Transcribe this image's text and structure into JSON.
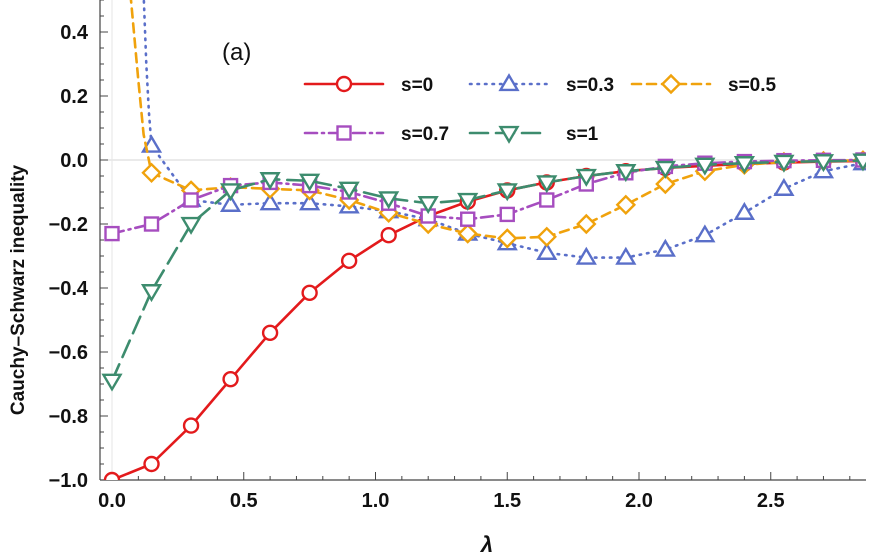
{
  "chart_data": {
    "type": "line",
    "panel_label": "(a)",
    "xlabel": "λ",
    "ylabel": "Cauchy–Schwarz inequality",
    "xlim": [
      -0.04,
      2.9
    ],
    "ylim": [
      -1.0,
      0.5
    ],
    "xticks": [
      0.0,
      0.5,
      1.0,
      1.5,
      2.0,
      2.5
    ],
    "xtick_labels": [
      "0.0",
      "0.5",
      "1.0",
      "1.5",
      "2.0",
      "2.5"
    ],
    "yticks": [
      -1.0,
      -0.8,
      -0.6,
      -0.4,
      -0.2,
      0.0,
      0.2,
      0.4
    ],
    "ytick_labels": [
      "−1.0",
      "−0.8",
      "−0.6",
      "−0.4",
      "−0.2",
      "0.0",
      "0.2",
      "0.4"
    ],
    "grid": "horizontal line at y=0",
    "legend_position": "top-right",
    "series": [
      {
        "name": "s=0",
        "color": "#e31a1c",
        "dash": "solid",
        "marker": "circle",
        "x": [
          0.0,
          0.15,
          0.3,
          0.45,
          0.6,
          0.75,
          0.9,
          1.05,
          1.2,
          1.35,
          1.5,
          1.65,
          1.8,
          1.95,
          2.1,
          2.25,
          2.4,
          2.55,
          2.7,
          2.85
        ],
        "y": [
          -1.0,
          -0.95,
          -0.83,
          -0.685,
          -0.54,
          -0.415,
          -0.315,
          -0.235,
          -0.175,
          -0.13,
          -0.095,
          -0.07,
          -0.05,
          -0.035,
          -0.025,
          -0.018,
          -0.012,
          -0.008,
          -0.005,
          -0.003
        ]
      },
      {
        "name": "s=0.3",
        "color": "#5a6fc9",
        "dash": "dotted",
        "marker": "triangle-up",
        "x": [
          0.15,
          0.3,
          0.45,
          0.6,
          0.75,
          0.9,
          1.05,
          1.2,
          1.35,
          1.5,
          1.65,
          1.8,
          1.95,
          2.1,
          2.25,
          2.4,
          2.55,
          2.7,
          2.85
        ],
        "y": [
          0.045,
          -0.125,
          -0.14,
          -0.135,
          -0.135,
          -0.145,
          -0.16,
          -0.185,
          -0.23,
          -0.26,
          -0.29,
          -0.305,
          -0.305,
          -0.28,
          -0.235,
          -0.165,
          -0.09,
          -0.035,
          -0.01
        ],
        "lead_in": [
          [
            0.12,
            0.52
          ],
          [
            0.13,
            0.3
          ],
          [
            0.14,
            0.15
          ]
        ]
      },
      {
        "name": "s=0.5",
        "color": "#f0a20c",
        "dash": "dashed",
        "marker": "diamond",
        "x": [
          0.15,
          0.3,
          0.45,
          0.6,
          0.75,
          0.9,
          1.05,
          1.2,
          1.35,
          1.5,
          1.65,
          1.8,
          1.95,
          2.1,
          2.25,
          2.4,
          2.55,
          2.7,
          2.85
        ],
        "y": [
          -0.04,
          -0.095,
          -0.085,
          -0.09,
          -0.095,
          -0.125,
          -0.165,
          -0.2,
          -0.23,
          -0.245,
          -0.24,
          -0.2,
          -0.14,
          -0.075,
          -0.035,
          -0.015,
          -0.006,
          -0.003,
          -0.001
        ],
        "lead_in": [
          [
            0.07,
            0.52
          ],
          [
            0.1,
            0.25
          ],
          [
            0.12,
            0.08
          ]
        ]
      },
      {
        "name": "s=0.7",
        "color": "#a64dbf",
        "dash": "dash-dot",
        "marker": "square",
        "x": [
          0.0,
          0.15,
          0.3,
          0.45,
          0.6,
          0.75,
          0.9,
          1.05,
          1.2,
          1.35,
          1.5,
          1.65,
          1.8,
          1.95,
          2.1,
          2.25,
          2.4,
          2.55,
          2.7,
          2.85
        ],
        "y": [
          -0.23,
          -0.2,
          -0.125,
          -0.08,
          -0.07,
          -0.08,
          -0.1,
          -0.135,
          -0.175,
          -0.185,
          -0.17,
          -0.125,
          -0.075,
          -0.04,
          -0.02,
          -0.01,
          -0.005,
          -0.002,
          -0.001,
          0.0
        ]
      },
      {
        "name": "s=1",
        "color": "#3d8c6e",
        "dash": "long-dash",
        "marker": "triangle-down",
        "x": [
          0.0,
          0.15,
          0.3,
          0.45,
          0.6,
          0.75,
          0.9,
          1.05,
          1.2,
          1.35,
          1.5,
          1.65,
          1.8,
          1.95,
          2.1,
          2.25,
          2.4,
          2.55,
          2.7,
          2.85
        ],
        "y": [
          -0.69,
          -0.41,
          -0.2,
          -0.095,
          -0.06,
          -0.065,
          -0.09,
          -0.12,
          -0.135,
          -0.125,
          -0.095,
          -0.07,
          -0.05,
          -0.035,
          -0.025,
          -0.015,
          -0.01,
          -0.006,
          -0.004,
          -0.002
        ]
      }
    ]
  }
}
